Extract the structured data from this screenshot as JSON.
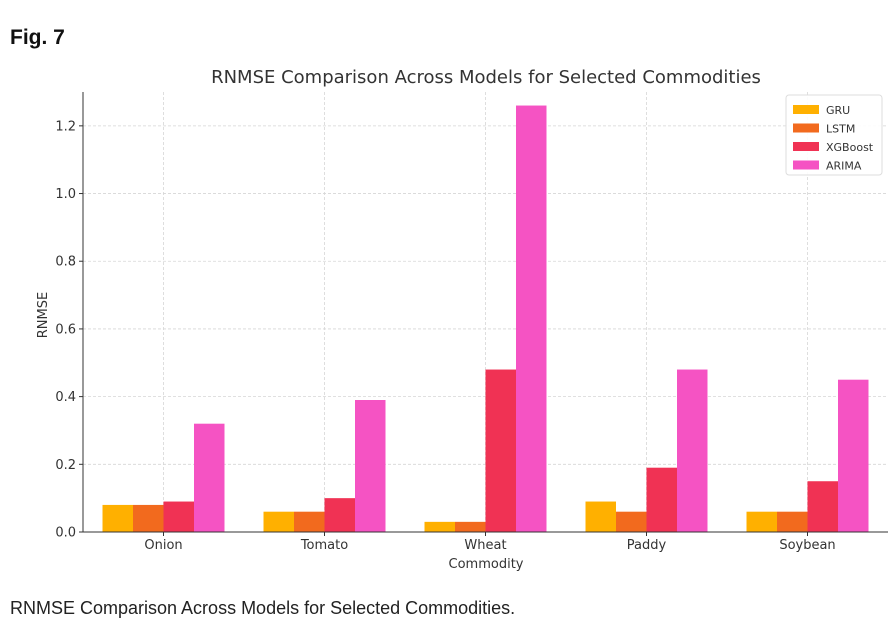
{
  "figure": {
    "label": "Fig. 7",
    "caption": "RNMSE Comparison Across Models for Selected Commodities."
  },
  "chart_data": {
    "type": "bar",
    "title": "RNMSE Comparison Across Models for Selected Commodities",
    "xlabel": "Commodity",
    "ylabel": "RNMSE",
    "categories": [
      "Onion",
      "Tomato",
      "Wheat",
      "Paddy",
      "Soybean"
    ],
    "series": [
      {
        "name": "GRU",
        "color": "#ffb000",
        "values": [
          0.08,
          0.06,
          0.03,
          0.09,
          0.06
        ]
      },
      {
        "name": "LSTM",
        "color": "#f26a1e",
        "values": [
          0.08,
          0.06,
          0.03,
          0.06,
          0.06
        ]
      },
      {
        "name": "XGBoost",
        "color": "#f03254",
        "values": [
          0.09,
          0.1,
          0.48,
          0.19,
          0.15
        ]
      },
      {
        "name": "ARIMA",
        "color": "#f553c3",
        "values": [
          0.32,
          0.39,
          1.26,
          0.48,
          0.45
        ]
      }
    ],
    "ylim": [
      0,
      1.3
    ],
    "yticks": [
      "0.0",
      "0.2",
      "0.4",
      "0.6",
      "0.8",
      "1.0",
      "1.2"
    ],
    "grid": true,
    "legend_position": "top-right"
  }
}
